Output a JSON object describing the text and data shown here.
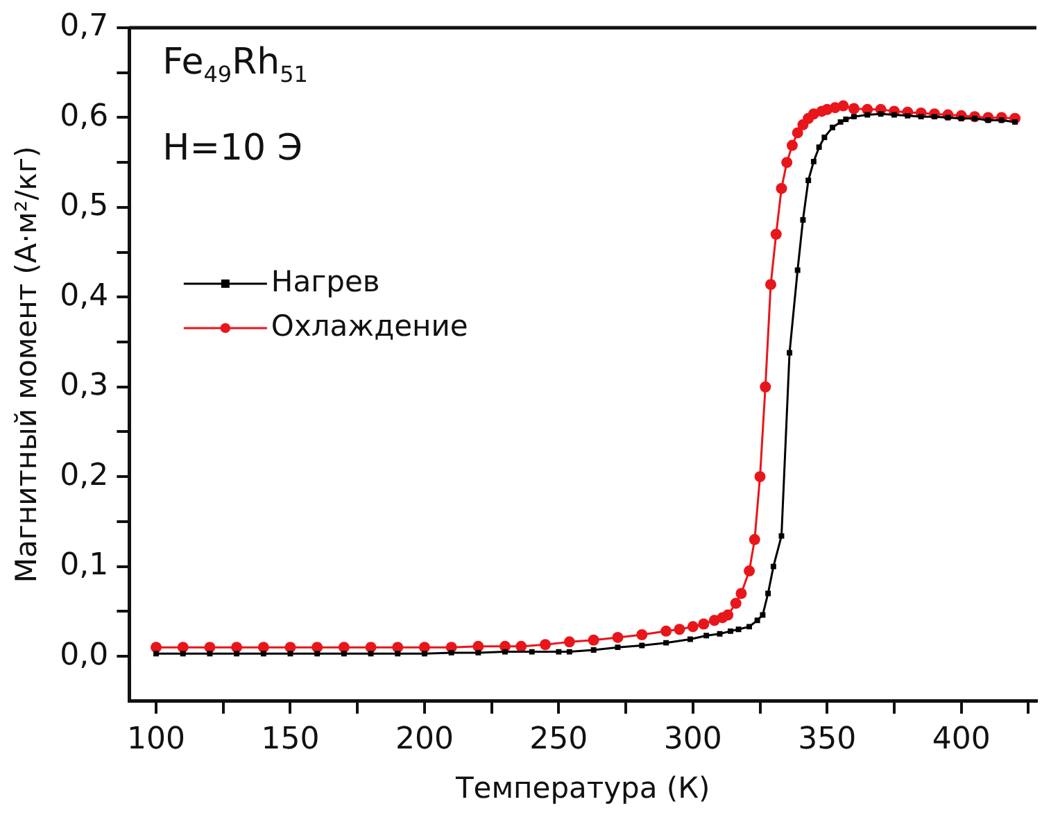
{
  "chart_data": {
    "type": "line",
    "xlabel": "Температура (К)",
    "ylabel": "Магнитный момент (А·м²/кг)",
    "annotations": [
      "Fe$_{49}$Rh$_{51}$",
      "H=10 Э"
    ],
    "xlim": [
      90,
      428
    ],
    "ylim": [
      -0.05,
      0.7
    ],
    "xticks": [
      100,
      {
        "value": 125,
        "label": null
      },
      150,
      {
        "value": 175,
        "label": null
      },
      200,
      {
        "value": 225,
        "label": null
      },
      250,
      {
        "value": 275,
        "label": null
      },
      300,
      {
        "value": 325,
        "label": null
      },
      350,
      {
        "value": 375,
        "label": null
      },
      400,
      {
        "value": 425,
        "label": null
      }
    ],
    "yticks": [
      {
        "value": 0,
        "label": "0,0"
      },
      {
        "value": 0.05,
        "label": null
      },
      {
        "value": 0.1,
        "label": "0,1"
      },
      {
        "value": 0.15,
        "label": null
      },
      {
        "value": 0.2,
        "label": "0,2"
      },
      {
        "value": 0.25,
        "label": null
      },
      {
        "value": 0.3,
        "label": "0,3"
      },
      {
        "value": 0.35,
        "label": null
      },
      {
        "value": 0.4,
        "label": "0,4"
      },
      {
        "value": 0.45,
        "label": null
      },
      {
        "value": 0.5,
        "label": "0,5"
      },
      {
        "value": 0.55,
        "label": null
      },
      {
        "value": 0.6,
        "label": "0,6"
      },
      {
        "value": 0.65,
        "label": null
      },
      {
        "value": 0.7,
        "label": "0,7"
      }
    ],
    "grid": false,
    "legend": "center left",
    "line_style": "solid",
    "series": [
      {
        "name": "Нагрев",
        "color": "#000000",
        "marker": "square",
        "x": [
          100,
          110,
          120,
          130,
          140,
          150,
          160,
          170,
          180,
          190,
          200,
          210,
          220,
          230,
          240,
          250,
          254,
          263,
          272,
          281,
          290,
          299,
          305,
          310,
          314,
          317,
          321,
          324,
          326,
          328,
          330,
          333,
          336,
          339,
          341,
          343,
          345,
          347,
          349,
          352,
          355,
          357,
          360,
          365,
          370,
          375,
          380,
          385,
          390,
          395,
          400,
          405,
          410,
          415,
          420
        ],
        "values": [
          0.003,
          0.003,
          0.003,
          0.003,
          0.003,
          0.003,
          0.003,
          0.003,
          0.003,
          0.003,
          0.003,
          0.004,
          0.004,
          0.005,
          0.005,
          0.005,
          0.005,
          0.007,
          0.01,
          0.012,
          0.015,
          0.019,
          0.023,
          0.025,
          0.028,
          0.03,
          0.033,
          0.04,
          0.046,
          0.07,
          0.1,
          0.134,
          0.338,
          0.43,
          0.486,
          0.53,
          0.551,
          0.567,
          0.578,
          0.589,
          0.595,
          0.598,
          0.601,
          0.603,
          0.604,
          0.603,
          0.602,
          0.601,
          0.601,
          0.6,
          0.599,
          0.599,
          0.597,
          0.597,
          0.595
        ]
      },
      {
        "name": "Охлаждение",
        "color": "#e8161b",
        "marker": "circle",
        "x": [
          100,
          110,
          120,
          130,
          140,
          150,
          160,
          170,
          180,
          190,
          200,
          210,
          220,
          230,
          236,
          245,
          254,
          263,
          272,
          281,
          290,
          295,
          300,
          304,
          308,
          311,
          313,
          316,
          318,
          321,
          323,
          325,
          327,
          329,
          331,
          333,
          335,
          337,
          339,
          341,
          343,
          345,
          348,
          350,
          353,
          356,
          360,
          365,
          370,
          375,
          380,
          385,
          390,
          395,
          400,
          405,
          410,
          415,
          420
        ],
        "values": [
          0.01,
          0.01,
          0.01,
          0.01,
          0.01,
          0.01,
          0.01,
          0.01,
          0.01,
          0.01,
          0.01,
          0.01,
          0.011,
          0.011,
          0.011,
          0.013,
          0.016,
          0.018,
          0.021,
          0.024,
          0.028,
          0.03,
          0.033,
          0.036,
          0.04,
          0.043,
          0.046,
          0.059,
          0.07,
          0.095,
          0.13,
          0.2,
          0.3,
          0.414,
          0.47,
          0.521,
          0.55,
          0.569,
          0.583,
          0.592,
          0.599,
          0.604,
          0.607,
          0.609,
          0.611,
          0.613,
          0.61,
          0.609,
          0.609,
          0.607,
          0.606,
          0.605,
          0.604,
          0.603,
          0.602,
          0.601,
          0.6,
          0.6,
          0.599
        ]
      }
    ]
  }
}
